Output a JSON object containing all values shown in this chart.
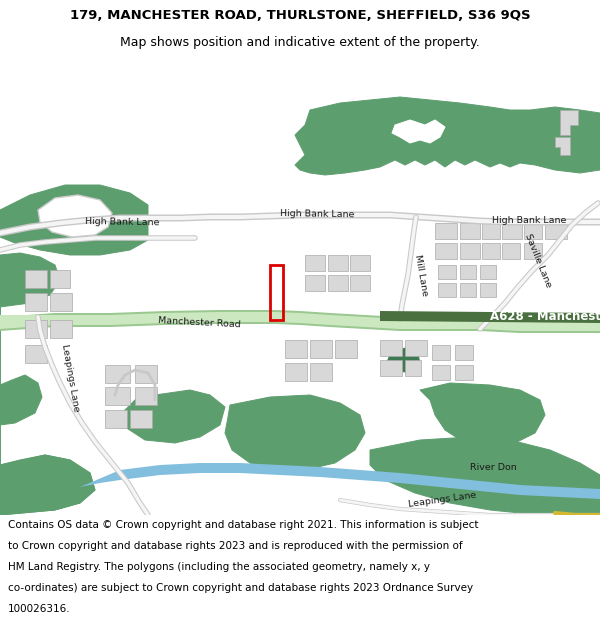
{
  "title_line1": "179, MANCHESTER ROAD, THURLSTONE, SHEFFIELD, S36 9QS",
  "title_line2": "Map shows position and indicative extent of the property.",
  "footer_text": "Contains OS data © Crown copyright and database right 2021. This information is subject to Crown copyright and database rights 2023 and is reproduced with the permission of HM Land Registry. The polygons (including the associated geometry, namely x, y co-ordinates) are subject to Crown copyright and database rights 2023 Ordnance Survey 100026316.",
  "title_fontsize": 9.5,
  "subtitle_fontsize": 9.0,
  "footer_fontsize": 7.5,
  "bg_color": "#ffffff",
  "map_bg": "#f2eeea",
  "road_major_color": "#cce8c0",
  "road_major_border": "#9ac890",
  "green_area_color": "#5d9e6f",
  "building_color": "#d8d8d8",
  "building_border": "#aaaaaa",
  "water_color": "#82bedd",
  "plot_border_color": "#dd0000",
  "figwidth": 6.0,
  "figheight": 6.25,
  "dpi": 100
}
